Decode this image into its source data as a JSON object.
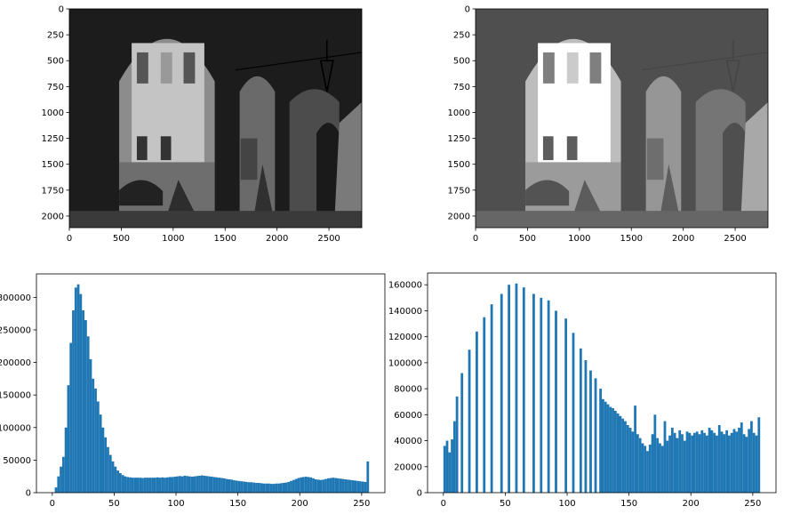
{
  "chart_data": [
    {
      "type": "image",
      "xlim": [
        0,
        2816
      ],
      "ylim": [
        2112,
        0
      ],
      "xticks": [
        0,
        500,
        1000,
        1500,
        2000,
        2500
      ],
      "yticks": [
        0,
        250,
        500,
        750,
        1000,
        1250,
        1500,
        1750,
        2000
      ]
    },
    {
      "type": "image",
      "xlim": [
        0,
        2816
      ],
      "ylim": [
        2112,
        0
      ],
      "xticks": [
        0,
        500,
        1000,
        1500,
        2000,
        2500
      ],
      "yticks": [
        0,
        250,
        500,
        750,
        1000,
        1250,
        1500,
        1750,
        2000
      ]
    },
    {
      "type": "histogram",
      "color": "#1f77b4",
      "xlim": [
        -12.8,
        268.8
      ],
      "ylim": [
        0,
        336000
      ],
      "xticks": [
        0,
        50,
        100,
        150,
        200,
        250
      ],
      "yticks": [
        0,
        50000,
        100000,
        150000,
        200000,
        250000,
        300000
      ],
      "bins": [
        0,
        2,
        4,
        6,
        8,
        10,
        12,
        14,
        16,
        18,
        20,
        22,
        24,
        26,
        28,
        30,
        32,
        34,
        36,
        38,
        40,
        42,
        44,
        46,
        48,
        50,
        52,
        54,
        56,
        58,
        60,
        62,
        64,
        66,
        68,
        70,
        72,
        74,
        76,
        78,
        80,
        82,
        84,
        86,
        88,
        90,
        92,
        94,
        96,
        98,
        100,
        102,
        104,
        106,
        108,
        110,
        112,
        114,
        116,
        118,
        120,
        122,
        124,
        126,
        128,
        130,
        132,
        134,
        136,
        138,
        140,
        142,
        144,
        146,
        148,
        150,
        152,
        154,
        156,
        158,
        160,
        162,
        164,
        166,
        168,
        170,
        172,
        174,
        176,
        178,
        180,
        182,
        184,
        186,
        188,
        190,
        192,
        194,
        196,
        198,
        200,
        202,
        204,
        206,
        208,
        210,
        212,
        214,
        216,
        218,
        220,
        222,
        224,
        226,
        228,
        230,
        232,
        234,
        236,
        238,
        240,
        242,
        244,
        246,
        248,
        250,
        252,
        254,
        256
      ],
      "counts": [
        0,
        8000,
        25000,
        40000,
        55000,
        100000,
        165000,
        230000,
        280000,
        315000,
        320000,
        305000,
        280000,
        265000,
        240000,
        205000,
        175000,
        160000,
        140000,
        120000,
        100000,
        85000,
        70000,
        58000,
        48000,
        40000,
        34000,
        30000,
        27000,
        25000,
        24000,
        23500,
        23000,
        23000,
        23000,
        23000,
        22500,
        23000,
        23000,
        23000,
        23000,
        23000,
        23500,
        23000,
        23500,
        23000,
        23500,
        24000,
        24000,
        24500,
        25000,
        25500,
        25000,
        26000,
        25500,
        25000,
        24500,
        25000,
        25500,
        26000,
        26500,
        26000,
        25500,
        25000,
        24500,
        24000,
        23500,
        23000,
        22500,
        22000,
        21000,
        20500,
        20000,
        19000,
        18500,
        18000,
        17500,
        17000,
        16500,
        16000,
        16000,
        15500,
        15000,
        15000,
        14500,
        14000,
        14000,
        14000,
        13500,
        13500,
        14000,
        14000,
        14500,
        15000,
        15500,
        16500,
        18000,
        19500,
        21000,
        22500,
        23500,
        24000,
        24500,
        24000,
        23500,
        22000,
        20500,
        20000,
        19500,
        20000,
        21000,
        22000,
        22500,
        23000,
        22500,
        22000,
        21500,
        21000,
        20500,
        20000,
        19500,
        19000,
        18500,
        18000,
        17500,
        17000,
        16500,
        48000
      ]
    },
    {
      "type": "histogram",
      "color": "#1f77b4",
      "xlim": [
        -12.8,
        268.8
      ],
      "ylim": [
        0,
        169050
      ],
      "xticks": [
        0,
        50,
        100,
        150,
        200,
        250
      ],
      "yticks": [
        0,
        20000,
        40000,
        60000,
        80000,
        100000,
        120000,
        140000,
        160000
      ],
      "bins": [
        0,
        2,
        4,
        6,
        8,
        10,
        12,
        14,
        16,
        18,
        20,
        22,
        24,
        26,
        28,
        30,
        32,
        34,
        36,
        38,
        40,
        42,
        44,
        46,
        48,
        50,
        52,
        54,
        56,
        58,
        60,
        62,
        64,
        66,
        68,
        70,
        72,
        74,
        76,
        78,
        80,
        82,
        84,
        86,
        88,
        90,
        92,
        94,
        96,
        98,
        100,
        102,
        104,
        106,
        108,
        110,
        112,
        114,
        116,
        118,
        120,
        122,
        124,
        126,
        128,
        130,
        132,
        134,
        136,
        138,
        140,
        142,
        144,
        146,
        148,
        150,
        152,
        154,
        156,
        158,
        160,
        162,
        164,
        166,
        168,
        170,
        172,
        174,
        176,
        178,
        180,
        182,
        184,
        186,
        188,
        190,
        192,
        194,
        196,
        198,
        200,
        202,
        204,
        206,
        208,
        210,
        212,
        214,
        216,
        218,
        220,
        222,
        224,
        226,
        228,
        230,
        232,
        234,
        236,
        238,
        240,
        242,
        244,
        246,
        248,
        250,
        252,
        254,
        256
      ],
      "counts": [
        36000,
        40000,
        31000,
        41000,
        55000,
        74000,
        0,
        92000,
        0,
        0,
        110000,
        0,
        0,
        124000,
        0,
        0,
        135000,
        0,
        0,
        145000,
        0,
        0,
        0,
        153000,
        0,
        0,
        160000,
        0,
        0,
        161000,
        0,
        0,
        158000,
        0,
        0,
        0,
        153000,
        0,
        0,
        150000,
        0,
        0,
        148000,
        0,
        0,
        140000,
        0,
        0,
        0,
        134000,
        0,
        0,
        123000,
        0,
        0,
        111000,
        0,
        102000,
        0,
        94000,
        0,
        88000,
        0,
        80000,
        72000,
        70000,
        68000,
        66000,
        65000,
        63000,
        61000,
        59000,
        57000,
        55000,
        52000,
        50000,
        47000,
        67000,
        45000,
        42000,
        38000,
        36000,
        32000,
        37000,
        45000,
        60000,
        42000,
        38000,
        36000,
        55000,
        40000,
        44000,
        50000,
        46000,
        42000,
        48000,
        45000,
        40000,
        47000,
        46000,
        44000,
        46000,
        47000,
        45000,
        48000,
        46000,
        44000,
        50000,
        48000,
        46000,
        44000,
        52000,
        47000,
        45000,
        48000,
        44000,
        46000,
        49000,
        47000,
        50000,
        54000,
        45000,
        43000,
        49000,
        55000,
        46000,
        44000,
        58000
      ]
    }
  ]
}
